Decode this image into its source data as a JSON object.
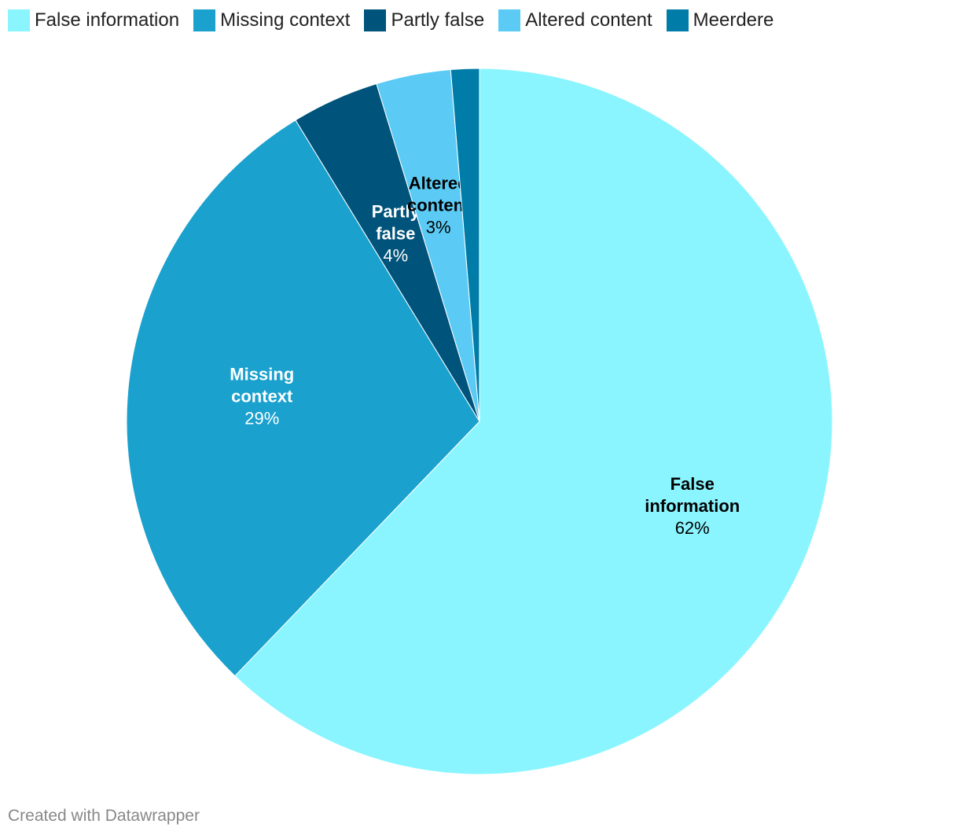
{
  "chart_data": {
    "type": "pie",
    "title": "",
    "legend_position": "top-left",
    "slices": [
      {
        "name": "False information",
        "label_lines": [
          "False",
          "information"
        ],
        "value": 62,
        "value_label": "62%",
        "color": "#8AF5FF",
        "text_color": "#000000"
      },
      {
        "name": "Missing context",
        "label_lines": [
          "Missing",
          "context"
        ],
        "value": 29,
        "value_label": "29%",
        "color": "#1AA1CE",
        "text_color": "#ffffff"
      },
      {
        "name": "Partly false",
        "label_lines": [
          "Partly",
          "false"
        ],
        "value": 4,
        "value_label": "4%",
        "color": "#00537A",
        "text_color": "#ffffff"
      },
      {
        "name": "Altered content",
        "label_lines": [
          "Altered",
          "content"
        ],
        "value": 3.4,
        "value_label": "3%",
        "color": "#5BCBF5",
        "text_color": "#000000"
      },
      {
        "name": "Meerdere",
        "label_lines": [],
        "value": 1.3,
        "value_label": "",
        "color": "#007CA8",
        "text_color": "#ffffff"
      }
    ]
  },
  "footer": {
    "credit": "Created with Datawrapper"
  }
}
